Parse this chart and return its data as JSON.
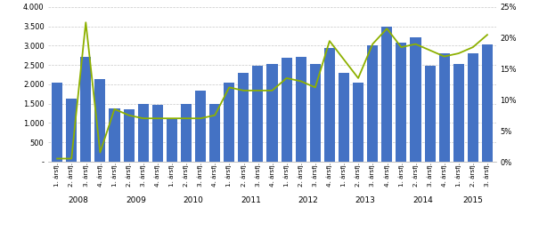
{
  "bar_values": [
    2050,
    1620,
    2700,
    2130,
    1380,
    1360,
    1500,
    1460,
    1130,
    1490,
    1830,
    1500,
    2050,
    2290,
    2470,
    2520,
    2680,
    2700,
    2520,
    2940,
    2290,
    2050,
    3000,
    3500,
    3080,
    3220,
    2490,
    2790,
    2520,
    2800,
    3020
  ],
  "line_values": [
    0.5,
    0.5,
    22.5,
    1.5,
    8.5,
    7.5,
    7.0,
    7.0,
    7.0,
    7.0,
    7.0,
    7.5,
    12.0,
    11.5,
    11.5,
    11.5,
    13.5,
    13.0,
    12.0,
    19.5,
    16.5,
    13.5,
    19.0,
    21.5,
    18.5,
    19.0,
    18.0,
    17.0,
    17.5,
    18.5,
    20.5
  ],
  "bar_color": "#4472C4",
  "line_color": "#8DB000",
  "ylim_left": [
    0,
    4000
  ],
  "ylim_right": [
    0,
    25
  ],
  "yticks_left": [
    0,
    500,
    1000,
    1500,
    2000,
    2500,
    3000,
    3500,
    4000
  ],
  "ytick_labels_left": [
    "-",
    "500",
    "1.000",
    "1.500",
    "2.000",
    "2.500",
    "3.000",
    "3.500",
    "4.000"
  ],
  "yticks_right": [
    0,
    5,
    10,
    15,
    20,
    25
  ],
  "ytick_labels_right": [
    "0%",
    "5%",
    "10%",
    "15%",
    "20%",
    "25%"
  ],
  "year_labels": [
    "2008",
    "2009",
    "2010",
    "2011",
    "2012",
    "2013",
    "2014",
    "2015"
  ],
  "quarter_labels": [
    "1. ársfj.",
    "2. ársfj.",
    "3. ársfj.",
    "4. ársfj."
  ],
  "background_color": "#ffffff",
  "grid_color": "#c8c8c8",
  "n_bars": 31,
  "n_years_full": 7,
  "last_year_quarters": 3
}
